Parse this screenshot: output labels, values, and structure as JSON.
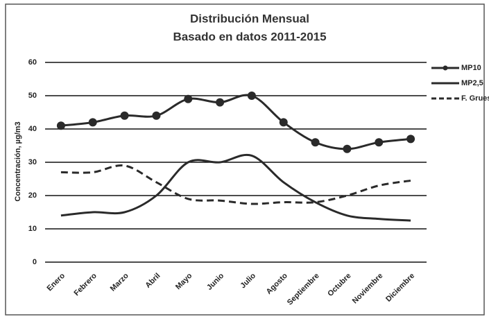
{
  "chart_data": {
    "type": "line",
    "title": "Distribución Mensual",
    "subtitle": "Basado en datos 2011-2015",
    "y_label": "Concentración, µg/m3",
    "categories": [
      "Enero",
      "Febrero",
      "Marzo",
      "Abril",
      "Mayo",
      "Junio",
      "Julio",
      "Agosto",
      "Septiembre",
      "Octubre",
      "Noviembre",
      "Diciembre"
    ],
    "series": [
      {
        "name": "MP10",
        "color": "#2a2a2a",
        "style": "solid",
        "marker": "circle",
        "values": [
          41,
          42,
          44,
          44,
          49,
          48,
          50,
          42,
          36,
          34,
          36,
          37
        ]
      },
      {
        "name": "MP2,5",
        "color": "#2a2a2a",
        "style": "solid",
        "values": [
          14,
          15,
          15,
          20,
          30,
          30,
          32,
          24,
          18,
          14,
          13,
          12.5
        ]
      },
      {
        "name": "F. Grues",
        "color": "#2a2a2a",
        "style": "dashed",
        "values": [
          27,
          27,
          29,
          24,
          19,
          18.5,
          17.5,
          18,
          18,
          20,
          23,
          24.5
        ]
      }
    ],
    "ylim": [
      0,
      60
    ],
    "yticks": [
      0,
      10,
      20,
      30,
      40,
      50,
      60
    ],
    "grid": true,
    "legend_position": "right"
  }
}
